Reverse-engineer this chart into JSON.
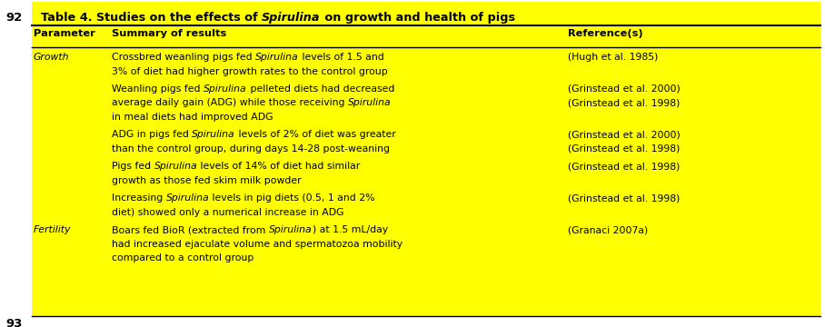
{
  "page_number_top": "92",
  "page_number_bottom": "93",
  "title_parts": [
    {
      "text": "Table 4. Studies on the effects of ",
      "italic": false,
      "bold": true
    },
    {
      "text": "Spirulina",
      "italic": true,
      "bold": true
    },
    {
      "text": " on growth and health of pigs",
      "italic": false,
      "bold": true
    }
  ],
  "col_headers": [
    {
      "text": "Parameter",
      "bold": true,
      "italic": false
    },
    {
      "text": "Summary of results",
      "bold": true,
      "italic": false
    },
    {
      "text": "Reference(s)",
      "bold": true,
      "italic": false
    }
  ],
  "rows": [
    {
      "parameter": "Growth",
      "entries": [
        {
          "lines": [
            [
              {
                "text": "Crossbred weanling pigs fed ",
                "italic": false
              },
              {
                "text": "Spirulina",
                "italic": true
              },
              {
                "text": " levels of 1.5 and",
                "italic": false
              }
            ],
            [
              {
                "text": "3% of diet had higher growth rates to the control group",
                "italic": false
              }
            ]
          ],
          "refs": [
            "(Hugh et al. 1985)"
          ]
        },
        {
          "lines": [
            [
              {
                "text": "Weanling pigs fed ",
                "italic": false
              },
              {
                "text": "Spirulina",
                "italic": true
              },
              {
                "text": " pelleted diets had decreased",
                "italic": false
              }
            ],
            [
              {
                "text": "average daily gain (ADG) while those receiving ",
                "italic": false
              },
              {
                "text": "Spirulina",
                "italic": true
              }
            ],
            [
              {
                "text": "in meal diets had improved ADG",
                "italic": false
              }
            ]
          ],
          "refs": [
            "(Grinstead et al. 2000)",
            "(Grinstead et al. 1998)"
          ]
        },
        {
          "lines": [
            [
              {
                "text": "ADG in pigs fed ",
                "italic": false
              },
              {
                "text": "Spirulina",
                "italic": true
              },
              {
                "text": " levels of 2% of diet was greater",
                "italic": false
              }
            ],
            [
              {
                "text": "than the control group, during days 14-28 post-weaning",
                "italic": false
              }
            ]
          ],
          "refs": [
            "(Grinstead et al. 2000)",
            "(Grinstead et al. 1998)"
          ]
        },
        {
          "lines": [
            [
              {
                "text": "Pigs fed ",
                "italic": false
              },
              {
                "text": "Spirulina",
                "italic": true
              },
              {
                "text": " levels of 14% of diet had similar",
                "italic": false
              }
            ],
            [
              {
                "text": "growth as those fed skim milk powder",
                "italic": false
              }
            ]
          ],
          "refs": [
            "(Grinstead et al. 1998)"
          ]
        },
        {
          "lines": [
            [
              {
                "text": "Increasing ",
                "italic": false
              },
              {
                "text": "Spirulina",
                "italic": true
              },
              {
                "text": " levels in pig diets (0.5, 1 and 2%",
                "italic": false
              }
            ],
            [
              {
                "text": "diet) showed only a numerical increase in ADG",
                "italic": false
              }
            ]
          ],
          "refs": [
            "(Grinstead et al. 1998)"
          ]
        }
      ]
    },
    {
      "parameter": "Fertility",
      "entries": [
        {
          "lines": [
            [
              {
                "text": "Boars fed BioR (extracted from ",
                "italic": false
              },
              {
                "text": "Spirulina",
                "italic": true
              },
              {
                "text": ") at 1.5 mL/day",
                "italic": false
              }
            ],
            [
              {
                "text": "had increased ejaculate volume and spermatozoa mobility",
                "italic": false
              }
            ],
            [
              {
                "text": "compared to a control group",
                "italic": false
              }
            ]
          ],
          "refs": [
            "(Granaci 2007a)"
          ]
        }
      ]
    }
  ],
  "bg_color": "#FFFF00",
  "text_color": "#000000",
  "font_size": 7.8,
  "title_font_size": 9.2,
  "header_font_size": 8.2,
  "fig_width": 9.08,
  "fig_height": 3.6,
  "dpi": 100
}
